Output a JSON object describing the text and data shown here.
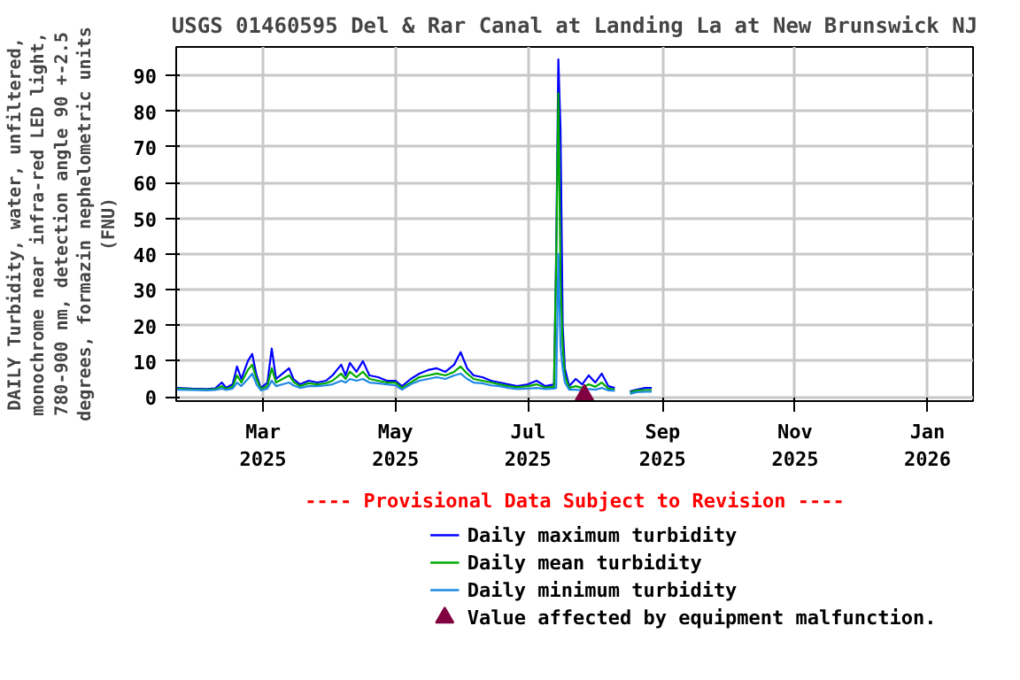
{
  "chart_data": {
    "type": "line",
    "title": "USGS 01460595 Del & Rar Canal at Landing La at New Brunswick NJ",
    "ylabel": "DAILY Turbidity, water, unfiltered, monochrome near infra-red LED light, 780-900 nm, detection angle 90 +-2.5 degrees, formazin nephelometric units (FNU)",
    "annotations": [
      "---- Provisional Data Subject to Revision ----"
    ],
    "x": [
      "2025-01-20",
      "2025-01-27",
      "2025-02-03",
      "2025-02-07",
      "2025-02-10",
      "2025-02-12",
      "2025-02-15",
      "2025-02-17",
      "2025-02-19",
      "2025-02-22",
      "2025-02-24",
      "2025-02-26",
      "2025-02-28",
      "2025-03-03",
      "2025-03-05",
      "2025-03-07",
      "2025-03-10",
      "2025-03-13",
      "2025-03-15",
      "2025-03-18",
      "2025-03-22",
      "2025-03-26",
      "2025-03-30",
      "2025-04-02",
      "2025-04-06",
      "2025-04-08",
      "2025-04-10",
      "2025-04-13",
      "2025-04-16",
      "2025-04-19",
      "2025-04-23",
      "2025-04-27",
      "2025-05-01",
      "2025-05-04",
      "2025-05-08",
      "2025-05-12",
      "2025-05-16",
      "2025-05-20",
      "2025-05-24",
      "2025-05-28",
      "2025-05-31",
      "2025-06-03",
      "2025-06-06",
      "2025-06-10",
      "2025-06-14",
      "2025-06-18",
      "2025-06-22",
      "2025-06-26",
      "2025-07-01",
      "2025-07-05",
      "2025-07-09",
      "2025-07-13",
      "2025-07-14",
      "2025-07-15",
      "2025-07-16",
      "2025-07-17",
      "2025-07-18",
      "2025-07-20",
      "2025-07-23",
      "2025-07-26",
      "2025-07-29",
      "2025-08-01",
      "2025-08-04",
      "2025-08-07",
      "2025-08-10",
      "2025-08-13",
      "2025-08-17",
      "2025-08-20",
      "2025-08-24",
      "2025-08-27"
    ],
    "series": [
      {
        "name": "Daily maximum turbidity",
        "color": "#0000ff",
        "values": [
          2.5,
          2.3,
          2.2,
          2.4,
          4.0,
          2.5,
          3.5,
          8.5,
          5.0,
          10.0,
          12.0,
          6.0,
          2.5,
          4.0,
          13.5,
          5.0,
          6.5,
          8.0,
          5.0,
          3.5,
          4.5,
          4.0,
          4.5,
          6.0,
          9.0,
          6.0,
          9.5,
          7.0,
          10.0,
          6.0,
          5.5,
          4.5,
          4.5,
          3.0,
          5.0,
          6.5,
          7.5,
          8.0,
          7.0,
          9.0,
          12.5,
          8.0,
          6.0,
          5.5,
          4.5,
          4.0,
          3.5,
          3.0,
          3.5,
          4.5,
          3.0,
          3.5,
          40,
          94.5,
          75,
          20,
          8,
          3.0,
          5.0,
          3.5,
          6.0,
          4.0,
          6.5,
          3.0,
          2.5,
          null,
          1.5,
          2.0,
          2.5,
          2.5
        ]
      },
      {
        "name": "Daily mean turbidity",
        "color": "#00aa00",
        "values": [
          2.3,
          2.1,
          2.0,
          2.1,
          3.0,
          2.2,
          2.8,
          6.0,
          4.0,
          7.5,
          9.0,
          5.0,
          2.2,
          3.0,
          8.0,
          4.0,
          5.0,
          6.0,
          4.2,
          3.0,
          3.8,
          3.5,
          3.8,
          4.5,
          6.5,
          5.0,
          7.0,
          5.5,
          7.0,
          5.0,
          4.5,
          4.0,
          4.0,
          2.5,
          4.0,
          5.5,
          6.0,
          6.5,
          6.0,
          7.0,
          8.5,
          6.5,
          5.0,
          4.5,
          4.0,
          3.5,
          3.0,
          2.7,
          3.0,
          3.5,
          2.6,
          2.8,
          38,
          85,
          33,
          14,
          6,
          2.5,
          3.0,
          2.5,
          3.5,
          2.8,
          4.0,
          2.3,
          2.0,
          null,
          1.2,
          1.8,
          1.9,
          1.9
        ]
      },
      {
        "name": "Daily minimum turbidity",
        "color": "#1e88e5",
        "values": [
          2.0,
          1.9,
          1.8,
          1.9,
          2.3,
          1.9,
          2.3,
          4.0,
          3.0,
          5.0,
          6.5,
          3.5,
          1.8,
          2.3,
          4.5,
          3.0,
          3.5,
          4.0,
          3.2,
          2.5,
          3.0,
          3.0,
          3.2,
          3.5,
          4.5,
          4.0,
          5.0,
          4.5,
          5.0,
          4.0,
          3.8,
          3.5,
          3.2,
          2.0,
          3.5,
          4.5,
          5.0,
          5.5,
          5.0,
          6.0,
          6.5,
          5.0,
          4.0,
          3.8,
          3.2,
          3.0,
          2.5,
          2.2,
          2.3,
          2.5,
          2.2,
          2.3,
          2.5,
          40,
          14,
          8,
          4,
          2.0,
          2.0,
          1.8,
          2.2,
          2.0,
          2.5,
          1.8,
          1.7,
          null,
          0.8,
          1.3,
          1.4,
          1.4
        ]
      },
      {
        "name": "Value affected by equipment malfunction.",
        "type": "scatter",
        "marker": "triangle",
        "color": "#800040",
        "x": [
          "2025-07-27"
        ],
        "values": [
          0.5
        ]
      }
    ],
    "xlim": [
      "2025-01-20",
      "2026-01-22"
    ],
    "xticks": [
      {
        "value": "2025-03-01",
        "label": "Mar 2025"
      },
      {
        "value": "2025-05-01",
        "label": "May 2025"
      },
      {
        "value": "2025-07-01",
        "label": "Jul 2025"
      },
      {
        "value": "2025-09-01",
        "label": "Sep 2025"
      },
      {
        "value": "2025-11-01",
        "label": "Nov 2025"
      },
      {
        "value": "2026-01-01",
        "label": "Jan 2026"
      }
    ],
    "ylim": [
      -1.2,
      98
    ],
    "yticks": [
      0,
      10,
      20,
      30,
      40,
      50,
      60,
      70,
      80,
      90
    ],
    "grid": true,
    "legend": "bottom",
    "marker": "none",
    "line_style": "solid"
  }
}
